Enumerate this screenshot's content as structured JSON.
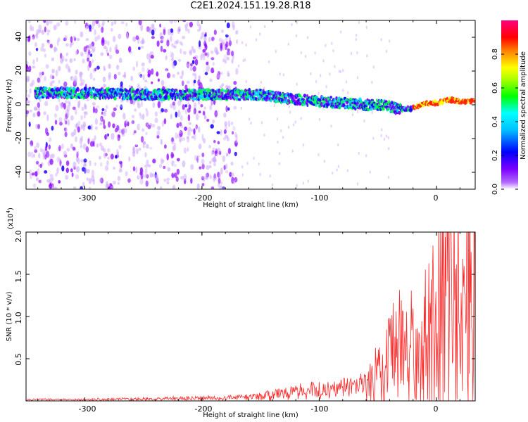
{
  "title": "C2E1.2024.151.19.28.R18",
  "top_panel": {
    "ylabel": "Frequency (Hz)",
    "xlabel": "Height of straight line (km)",
    "xticks": [
      "-300",
      "-200",
      "-100",
      "0"
    ],
    "yticks": [
      "40",
      "20",
      "0",
      "-20",
      "-40"
    ]
  },
  "colorbar": {
    "label": "Normalized spectral amplitude",
    "ticks": [
      "0.0",
      "0.2",
      "0.4",
      "0.6",
      "0.8"
    ]
  },
  "bottom_panel": {
    "ylabel": "SNR (10 * v/v)",
    "exponent_label": "(x10",
    "exponent_power": "4",
    "exponent_close": ")",
    "xlabel": "Height of straight line (km)",
    "xticks": [
      "-300",
      "-200",
      "-100",
      "0"
    ],
    "yticks": [
      "2.0",
      "1.5",
      "1.0",
      "0.5"
    ]
  },
  "chart_data": [
    {
      "type": "heatmap",
      "title": "C2E1.2024.151.19.28.R18",
      "xlabel": "Height of straight line (km)",
      "ylabel": "Frequency (Hz)",
      "xlim": [
        -350,
        33
      ],
      "ylim": [
        -50,
        50
      ],
      "colorbar_label": "Normalized spectral amplitude",
      "colorbar_range": [
        0.0,
        1.0
      ],
      "colorscale": [
        "#ffffff",
        "#8a00ff",
        "#0000ff",
        "#00ffff",
        "#00ff00",
        "#ffff00",
        "#ff0000",
        "#ff00aa"
      ],
      "dominant_frequency_track": {
        "x": [
          -340,
          -300,
          -250,
          -200,
          -170,
          -150,
          -120,
          -100,
          -80,
          -60,
          -45,
          -30,
          -20,
          -10,
          0,
          10,
          20,
          33
        ],
        "y": [
          7,
          7,
          6,
          6,
          6,
          6,
          3,
          2,
          1,
          0,
          0,
          -3,
          -2,
          1,
          1,
          3,
          2,
          2
        ]
      },
      "noise_region_x": [
        -350,
        -170
      ]
    },
    {
      "type": "line",
      "xlabel": "Height of straight line (km)",
      "ylabel": "SNR (10 * v/v)",
      "xlim": [
        -350,
        33
      ],
      "ylim": [
        0,
        2.0
      ],
      "y_multiplier": "x10^4",
      "color": "#ff2a2a",
      "series": [
        {
          "x": [
            -350,
            -300,
            -250,
            -200,
            -170,
            -150,
            -130,
            -110,
            -90,
            -70,
            -60,
            -50,
            -40,
            -30,
            -20,
            -10,
            0,
            5,
            10,
            15,
            20,
            25,
            33
          ],
          "y": [
            0.02,
            0.02,
            0.03,
            0.04,
            0.05,
            0.07,
            0.12,
            0.15,
            0.17,
            0.2,
            0.27,
            0.4,
            0.6,
            0.75,
            0.8,
            0.95,
            1.1,
            1.6,
            1.8,
            1.5,
            1.55,
            1.6,
            1.7
          ]
        }
      ]
    }
  ]
}
